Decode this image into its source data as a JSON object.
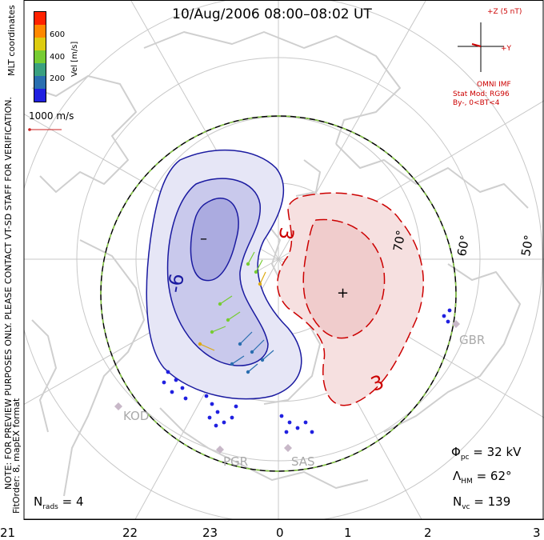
{
  "title": "10/Aug/2006 08:00–08:02 UT",
  "side_notes": {
    "coords": "MLT coordinates",
    "note": "NOTE: FOR PREVIEW PURPOSES ONLY. PLEASE CONTACT VT-SD STAFF FOR VERIFICATION.",
    "fit": "FitOrder: 8, mapEX format"
  },
  "colorbar": {
    "label": "Vel [m/s]",
    "ticks": [
      "600",
      "400",
      "200"
    ],
    "colors": [
      "#2020e0",
      "#2a6fb0",
      "#3aa080",
      "#77cc33",
      "#ddcc11",
      "#ff8800",
      "#ff2200"
    ]
  },
  "ref_vector": "1000 m/s",
  "imf": {
    "bz": "+Z (5 nT)",
    "by": "+Y",
    "source": "OMNI IMF",
    "model": "Stat Mod: RG96",
    "condition": "By-, 0<BT<4"
  },
  "contours": {
    "neg_label": "-6",
    "neg_center": "–",
    "pos_label_top": "3",
    "pos_label_bottom": "3",
    "pos_center": "+"
  },
  "lat_labels": [
    "70°",
    "60°",
    "50°"
  ],
  "stations": [
    "GBR",
    "KOD",
    "PGR",
    "SAS"
  ],
  "stats": {
    "phi": "Φ",
    "phi_sub": "pc",
    "phi_val": "= 32 kV",
    "lam": "Λ",
    "lam_sub": "HM",
    "lam_val": "= 62°",
    "nvc": "N",
    "nvc_sub": "vc",
    "nvc_val": "= 139",
    "nrads": "N",
    "nrads_sub": "rads",
    "nrads_val": "= 4"
  },
  "mlt_ticks": [
    "21",
    "22",
    "23",
    "0",
    "1",
    "2",
    "3"
  ]
}
